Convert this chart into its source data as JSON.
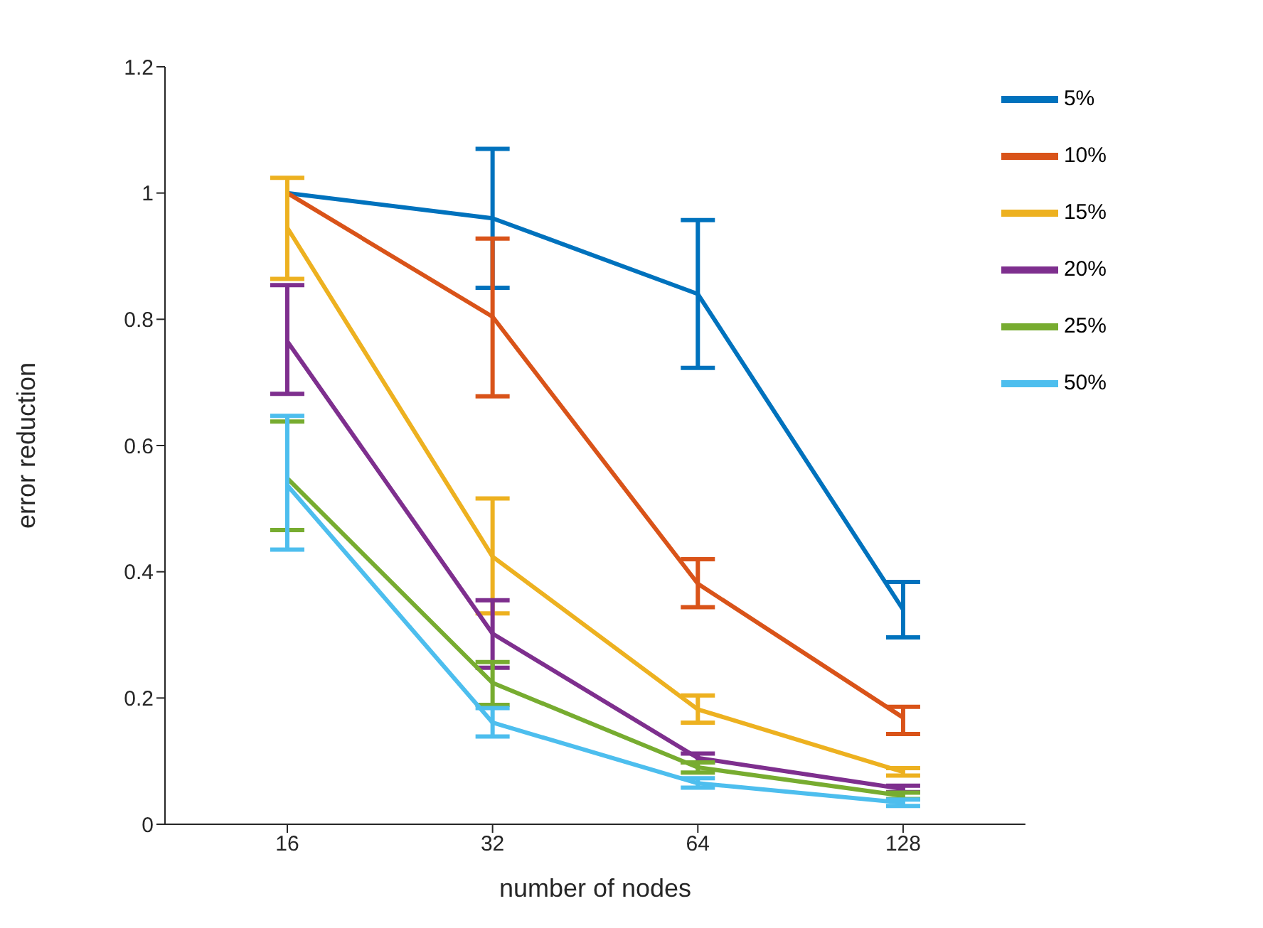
{
  "chart_data": {
    "type": "line",
    "xlabel": "number of nodes",
    "ylabel": "error reduction",
    "categories": [
      "16",
      "32",
      "64",
      "128"
    ],
    "series": [
      {
        "name": "5%",
        "color": "#0072bd",
        "values": [
          1.0,
          0.96,
          0.84,
          0.34
        ],
        "errors": [
          null,
          [
            0.85,
            1.07
          ],
          [
            0.723,
            0.957
          ],
          [
            0.296,
            0.384
          ]
        ]
      },
      {
        "name": "10%",
        "color": "#d95319",
        "values": [
          1.0,
          0.804,
          0.381,
          0.169
        ],
        "errors": [
          null,
          [
            0.678,
            0.928
          ],
          [
            0.344,
            0.42
          ],
          [
            0.143,
            0.186
          ]
        ]
      },
      {
        "name": "15%",
        "color": "#edb120",
        "values": [
          0.945,
          0.424,
          0.182,
          0.083
        ],
        "errors": [
          [
            0.864,
            1.024
          ],
          [
            0.334,
            0.516
          ],
          [
            0.161,
            0.204
          ],
          [
            0.077,
            0.089
          ]
        ]
      },
      {
        "name": "20%",
        "color": "#7e2f8e",
        "values": [
          0.765,
          0.302,
          0.105,
          0.056
        ],
        "errors": [
          [
            0.682,
            0.854
          ],
          [
            0.248,
            0.355
          ],
          [
            0.098,
            0.112
          ],
          [
            0.051,
            0.061
          ]
        ]
      },
      {
        "name": "25%",
        "color": "#77ac30",
        "values": [
          0.548,
          0.224,
          0.09,
          0.045
        ],
        "errors": [
          [
            0.466,
            0.638
          ],
          [
            0.189,
            0.257
          ],
          [
            0.082,
            0.098
          ],
          [
            0.04,
            0.05
          ]
        ]
      },
      {
        "name": "50%",
        "color": "#4dbeee",
        "values": [
          0.537,
          0.161,
          0.065,
          0.034
        ],
        "errors": [
          [
            0.435,
            0.647
          ],
          [
            0.139,
            0.184
          ],
          [
            0.058,
            0.073
          ],
          [
            0.029,
            0.039
          ]
        ]
      }
    ],
    "ylim": [
      0,
      1.2
    ],
    "yticks": [
      0,
      0.2,
      0.4,
      0.6,
      0.8,
      1,
      1.2
    ],
    "legend": "top right",
    "grid": false,
    "marker": "none",
    "line_style": "solid"
  }
}
